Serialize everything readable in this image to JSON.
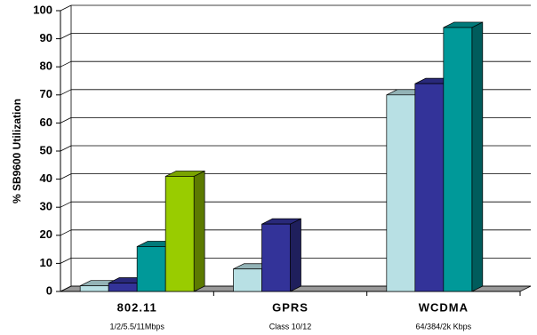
{
  "chart_data": {
    "type": "bar3d",
    "categories": [
      "802.11",
      "GPRS",
      "WCDMA"
    ],
    "sublabels": [
      "1/2/5.5/11Mbps",
      "Class 10/12",
      "64/384/2k Kbps"
    ],
    "y_label": "% SB9600 Utilization",
    "series": [
      {
        "color": "#b8e0e4",
        "values": [
          2,
          8,
          70
        ]
      },
      {
        "color": "#333399",
        "values": [
          3,
          24,
          74
        ]
      },
      {
        "color": "#009999",
        "values": [
          16,
          null,
          94
        ]
      },
      {
        "color": "#99cc00",
        "values": [
          41,
          null,
          null
        ]
      }
    ],
    "ylim": [
      0,
      100
    ],
    "yticks": [
      0,
      10,
      20,
      30,
      40,
      50,
      60,
      70,
      80,
      90,
      100
    ],
    "grid": true
  }
}
